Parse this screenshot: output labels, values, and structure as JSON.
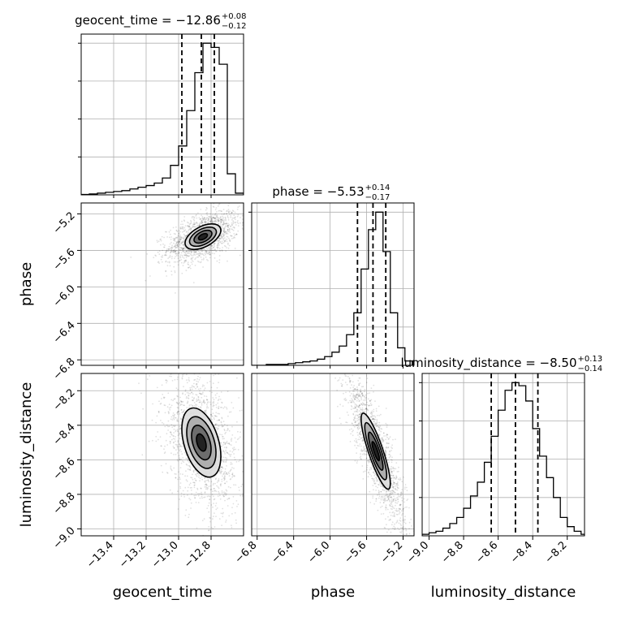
{
  "chart_data": {
    "type": "corner",
    "parameters": [
      "geocent_time",
      "phase",
      "luminosity_distance"
    ],
    "axis_ranges": {
      "geocent_time": [
        -13.6,
        -12.6
      ],
      "phase": [
        -6.86,
        -5.08
      ],
      "luminosity_distance": [
        -9.04,
        -8.1
      ]
    },
    "ticks": {
      "geocent_time": [
        -13.4,
        -13.2,
        -13.0,
        -12.8
      ],
      "phase": [
        -6.8,
        -6.4,
        -6.0,
        -5.6,
        -5.2
      ],
      "luminosity_distance": [
        -9.0,
        -8.8,
        -8.6,
        -8.4,
        -8.2
      ]
    },
    "tick_labels": {
      "geocent_time": [
        "−13.4",
        "−13.2",
        "−13.0",
        "−12.8"
      ],
      "phase": [
        "−6.8",
        "−6.4",
        "−6.0",
        "−5.6",
        "−5.2"
      ],
      "luminosity_distance": [
        "−9.0",
        "−8.8",
        "−8.6",
        "−8.4",
        "−8.2"
      ]
    },
    "titles": [
      {
        "param": "geocent_time",
        "main": "geocent_time = −12.86",
        "sup": "+0.08",
        "sub": "−0.12"
      },
      {
        "param": "phase",
        "main": "phase = −5.53",
        "sup": "+0.14",
        "sub": "−0.17"
      },
      {
        "param": "luminosity_distance",
        "main": "luminosity_distance = −8.50",
        "sup": "+0.13",
        "sub": "−0.14"
      }
    ],
    "quantiles": {
      "geocent_time": [
        -12.98,
        -12.86,
        -12.78
      ],
      "phase": [
        -5.7,
        -5.53,
        -5.39
      ],
      "luminosity_distance": [
        -8.64,
        -8.5,
        -8.37
      ]
    },
    "histograms": {
      "geocent_time": {
        "bin_edges": [
          -13.6,
          -13.55,
          -13.5,
          -13.45,
          -13.4,
          -13.35,
          -13.3,
          -13.25,
          -13.2,
          -13.15,
          -13.1,
          -13.05,
          -13.0,
          -12.95,
          -12.9,
          -12.85,
          -12.8,
          -12.75,
          -12.7,
          -12.65,
          -12.6
        ],
        "counts": [
          0.5,
          1,
          2,
          3,
          4,
          5,
          7,
          9,
          11,
          14,
          20,
          35,
          58,
          100,
          145,
          180,
          175,
          155,
          25,
          2
        ]
      },
      "phase": {
        "bin_edges": [
          -6.86,
          -6.78,
          -6.7,
          -6.62,
          -6.54,
          -6.46,
          -6.38,
          -6.3,
          -6.22,
          -6.14,
          -6.06,
          -5.98,
          -5.9,
          -5.82,
          -5.74,
          -5.66,
          -5.58,
          -5.5,
          -5.42,
          -5.34,
          -5.26,
          -5.18,
          -5.1
        ],
        "counts": [
          0,
          0,
          1,
          1,
          1,
          2,
          3,
          4,
          5,
          7,
          10,
          15,
          22,
          35,
          60,
          110,
          155,
          175,
          130,
          60,
          20,
          5
        ]
      },
      "luminosity_distance": {
        "bin_edges": [
          -9.04,
          -9.0,
          -8.96,
          -8.92,
          -8.88,
          -8.84,
          -8.8,
          -8.76,
          -8.72,
          -8.68,
          -8.64,
          -8.6,
          -8.56,
          -8.52,
          -8.48,
          -8.44,
          -8.4,
          -8.36,
          -8.32,
          -8.28,
          -8.24,
          -8.2,
          -8.16,
          -8.12,
          -8.1
        ],
        "counts": [
          1,
          2,
          3,
          5,
          8,
          12,
          18,
          26,
          35,
          48,
          65,
          82,
          95,
          100,
          98,
          88,
          70,
          52,
          38,
          25,
          12,
          6,
          3,
          1
        ]
      }
    },
    "joint_2d": [
      {
        "x": "geocent_time",
        "y": "phase",
        "mean": [
          -12.85,
          -5.45
        ],
        "sd": [
          0.055,
          0.07
        ],
        "rho": 0.5,
        "contour_levels_sigma": [
          0.5,
          1.0,
          1.5,
          2.0
        ]
      },
      {
        "x": "geocent_time",
        "y": "luminosity_distance",
        "mean": [
          -12.86,
          -8.5
        ],
        "sd": [
          0.06,
          0.1
        ],
        "rho": -0.4,
        "contour_levels_sigma": [
          0.5,
          1.0,
          1.5,
          2.0
        ]
      },
      {
        "x": "phase",
        "y": "luminosity_distance",
        "mean": [
          -5.5,
          -8.55
        ],
        "sd": [
          0.08,
          0.11
        ],
        "rho": -0.85,
        "contour_levels_sigma": [
          0.5,
          1.0,
          1.5,
          2.0
        ]
      }
    ],
    "grid": true
  }
}
